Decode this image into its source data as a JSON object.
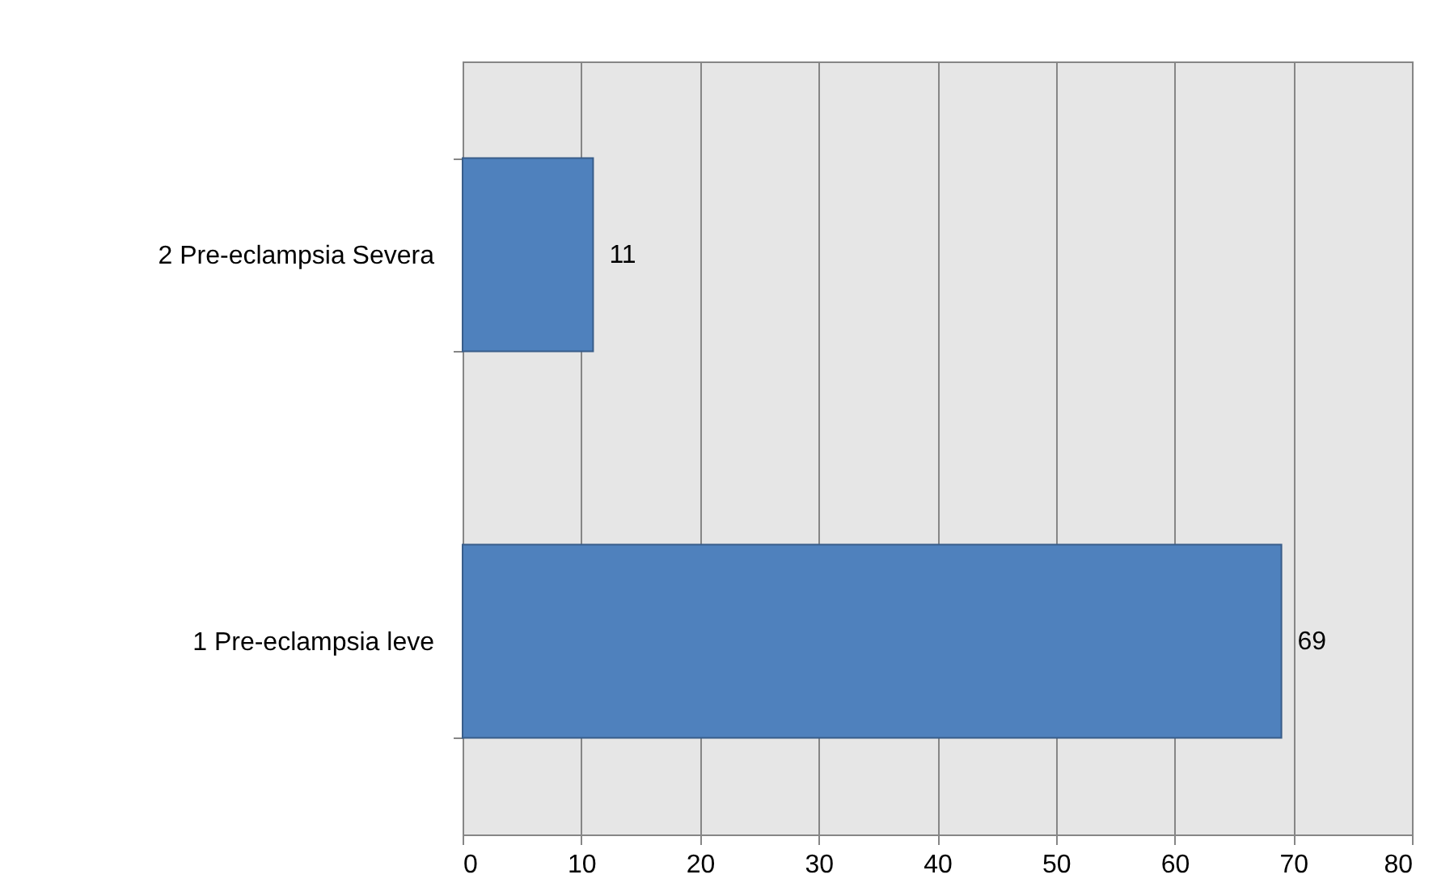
{
  "chart_data": {
    "type": "bar",
    "orientation": "horizontal",
    "categories": [
      "2 Pre-eclampsia Severa",
      "1 Pre-eclampsia leve"
    ],
    "values": [
      11,
      69
    ],
    "color": "#4f81bd",
    "xlim": [
      0,
      80
    ],
    "xticks": [
      0,
      10,
      20,
      30,
      40,
      50,
      60,
      70,
      80
    ],
    "grid": "x",
    "data_labels": true
  }
}
